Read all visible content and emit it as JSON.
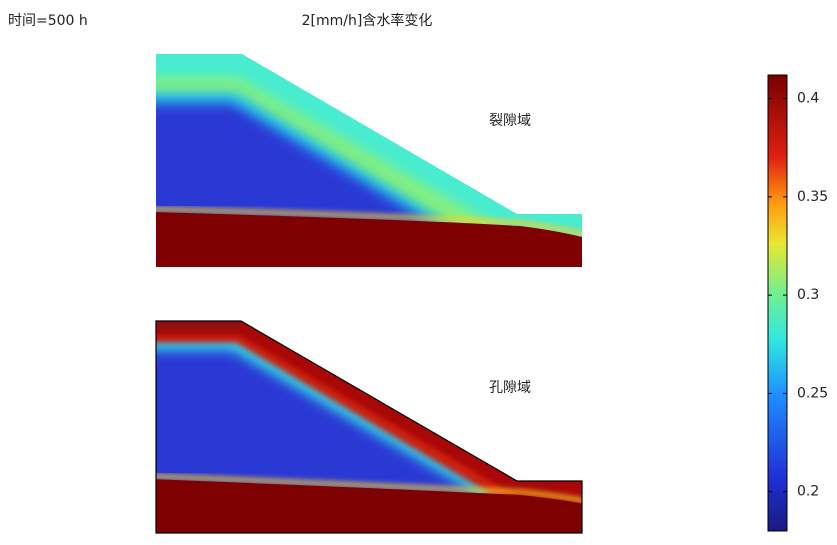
{
  "chart_data": {
    "type": "colorbar-field",
    "title": "2[mm/h]含水率变化",
    "time_label": "时间=500 h",
    "panels": [
      {
        "label": "裂隙域"
      },
      {
        "label": "孔隙域"
      }
    ],
    "ylim": [
      0.18,
      0.412
    ],
    "yticks": [
      0.2,
      0.25,
      0.3,
      0.35,
      0.4
    ]
  }
}
